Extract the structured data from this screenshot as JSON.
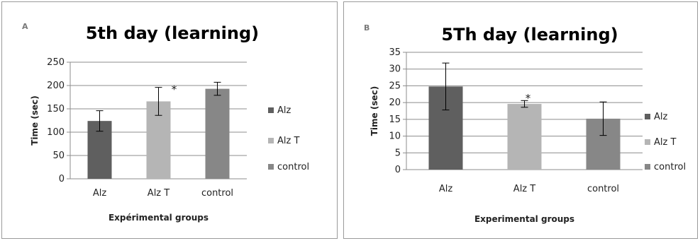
{
  "chart_data": [
    {
      "type": "bar",
      "panel_label": "A",
      "title": "5th day (learning)",
      "xlabel": "Expérimental groups",
      "ylabel": "Time (sec)",
      "categories": [
        "Alz",
        "Alz T",
        "control"
      ],
      "values": [
        124,
        166,
        193
      ],
      "errors": [
        22,
        30,
        14
      ],
      "significance": [
        "",
        "*",
        ""
      ],
      "colors": [
        "#5f5f5f",
        "#b5b5b5",
        "#878787"
      ],
      "ylim": [
        0,
        250
      ],
      "yticks": [
        0,
        50,
        100,
        150,
        200,
        250
      ],
      "legend": [
        "Alz",
        "Alz T",
        "control"
      ],
      "legend_position": "right",
      "grid": true
    },
    {
      "type": "bar",
      "panel_label": "B",
      "title": "5Th day (learning)",
      "xlabel": "Experimental groups",
      "ylabel": "Time (sec)",
      "categories": [
        "Alz",
        "Alz T",
        "control"
      ],
      "values": [
        24.8,
        19.6,
        15.2
      ],
      "errors": [
        7,
        1,
        5
      ],
      "significance": [
        "",
        "*",
        ""
      ],
      "colors": [
        "#5f5f5f",
        "#b5b5b5",
        "#878787"
      ],
      "ylim": [
        0,
        35
      ],
      "yticks": [
        0,
        5,
        10,
        15,
        20,
        25,
        30,
        35
      ],
      "legend": [
        "Alz",
        "Alz T",
        "control"
      ],
      "legend_position": "right",
      "grid": true
    }
  ]
}
